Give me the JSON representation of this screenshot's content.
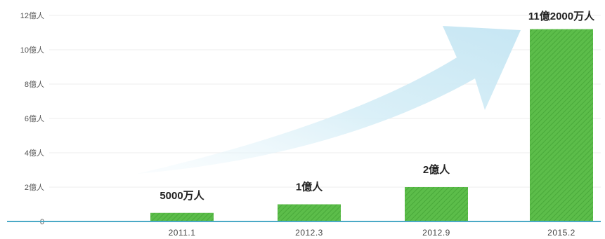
{
  "chart_data": {
    "type": "bar",
    "categories": [
      "2011.1",
      "2012.3",
      "2012.9",
      "2015.2"
    ],
    "values": [
      0.5,
      1,
      2,
      11.2
    ],
    "value_unit": "億人",
    "data_labels": [
      "5000万人",
      "1億人",
      "2億人",
      "11億2000万人"
    ],
    "y_ticks": [
      {
        "value": 0,
        "label": "0"
      },
      {
        "value": 2,
        "label": "2億人"
      },
      {
        "value": 4,
        "label": "4億人"
      },
      {
        "value": 6,
        "label": "6億人"
      },
      {
        "value": 8,
        "label": "8億人"
      },
      {
        "value": 10,
        "label": "10億人"
      },
      {
        "value": 12,
        "label": "12億人"
      }
    ],
    "ylim": [
      0,
      12
    ],
    "grid": true,
    "title": "",
    "xlabel": "",
    "ylabel": "",
    "colors": {
      "bar": "#5cbd4a",
      "bar_stripe": "#4aa83a",
      "axis": "#4aa9c6",
      "grid": "#eeeeee",
      "arrow": "#cfe9f3"
    }
  }
}
